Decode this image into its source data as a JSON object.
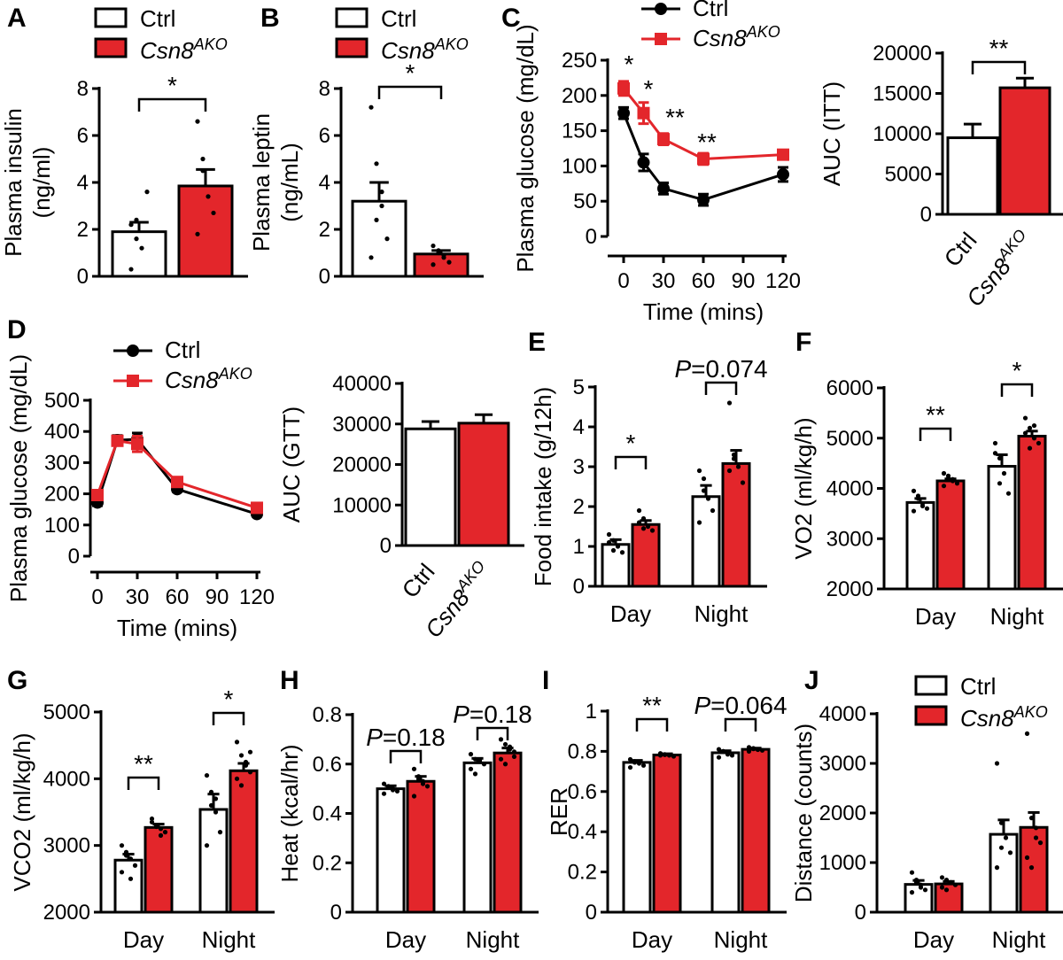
{
  "colors": {
    "ctrl": "#ffffff",
    "ako": "#e3262b",
    "ctrl_line": "#000000",
    "ako_line": "#e3262b"
  },
  "legend": {
    "ctrl": "Ctrl",
    "ako_base": "Csn8",
    "ako_sup": "AKO"
  },
  "chart_data": [
    {
      "panel": "A",
      "type": "bar",
      "ylabel": "Plasma insulin (ng/ml)",
      "ylim": [
        0,
        8
      ],
      "yticks": [
        0,
        2,
        4,
        6,
        8
      ],
      "categories": [
        "Ctrl",
        "Csn8AKO"
      ],
      "values": [
        1.9,
        3.85
      ],
      "errors": [
        0.4,
        0.7
      ],
      "points": [
        [
          2.2,
          1.6,
          1.2,
          3.6,
          0.3,
          2.4
        ],
        [
          6.6,
          4.5,
          3.4,
          2.7,
          1.8,
          5.0
        ]
      ],
      "brackets": [
        {
          "text": "*"
        }
      ]
    },
    {
      "panel": "B",
      "type": "bar",
      "ylabel": "Plasma leptin (ng/mL)",
      "ylim": [
        0,
        8
      ],
      "yticks": [
        0,
        2,
        4,
        6,
        8
      ],
      "categories": [
        "Ctrl",
        "Csn8AKO"
      ],
      "values": [
        3.2,
        0.95
      ],
      "errors": [
        0.8,
        0.15
      ],
      "points": [
        [
          7.2,
          4.8,
          3.0,
          1.6,
          0.8,
          2.4,
          3.6
        ],
        [
          1.3,
          1.1,
          0.8,
          0.6,
          0.5,
          1.0,
          0.9
        ]
      ],
      "brackets": [
        {
          "text": "*"
        }
      ]
    },
    {
      "panel": "C",
      "type": "line",
      "xlabel": "Time (mins)",
      "ylabel": "Plasma glucose (mg/dL)",
      "xlim": [
        0,
        120
      ],
      "ylim": [
        0,
        250
      ],
      "xticks": [
        0,
        30,
        60,
        90,
        120
      ],
      "yticks": [
        0,
        50,
        100,
        150,
        200,
        250
      ],
      "x": [
        0,
        15,
        30,
        60,
        120
      ],
      "series": [
        {
          "name": "Ctrl",
          "values": [
            175,
            105,
            68,
            52,
            88
          ],
          "errors": [
            8,
            12,
            8,
            8,
            10
          ]
        },
        {
          "name": "Csn8AKO",
          "values": [
            210,
            175,
            138,
            110,
            116
          ],
          "errors": [
            10,
            15,
            8,
            8,
            5
          ]
        }
      ],
      "annotations": [
        "*",
        "*",
        "**",
        "**"
      ]
    },
    {
      "panel": "C2",
      "type": "bar",
      "ylabel": "AUC (ITT)",
      "ylim": [
        0,
        20000
      ],
      "yticks": [
        0,
        5000,
        10000,
        15000,
        20000
      ],
      "categories": [
        "Ctrl",
        "Csn8AKO"
      ],
      "values": [
        9500,
        15700
      ],
      "errors": [
        1700,
        1200
      ],
      "brackets": [
        {
          "text": "**"
        }
      ]
    },
    {
      "panel": "D",
      "type": "line",
      "xlabel": "Time (mins)",
      "ylabel": "Plasma glucose (mg/dL)",
      "xlim": [
        0,
        120
      ],
      "ylim": [
        0,
        500
      ],
      "xticks": [
        0,
        30,
        60,
        90,
        120
      ],
      "yticks": [
        0,
        100,
        200,
        300,
        400,
        500
      ],
      "x": [
        0,
        15,
        30,
        60,
        120
      ],
      "series": [
        {
          "name": "Ctrl",
          "values": [
            172,
            372,
            375,
            215,
            135
          ],
          "errors": [
            10,
            15,
            20,
            8,
            6
          ]
        },
        {
          "name": "Csn8AKO",
          "values": [
            196,
            370,
            360,
            238,
            155
          ],
          "errors": [
            10,
            15,
            25,
            8,
            6
          ]
        }
      ]
    },
    {
      "panel": "D2",
      "type": "bar",
      "ylabel": "AUC (GTT)",
      "ylim": [
        0,
        40000
      ],
      "yticks": [
        0,
        10000,
        20000,
        30000,
        40000
      ],
      "categories": [
        "Ctrl",
        "Csn8AKO"
      ],
      "values": [
        28800,
        30200
      ],
      "errors": [
        1800,
        2100
      ]
    },
    {
      "panel": "E",
      "type": "grouped_bar",
      "ylabel": "Food intake (g/12h)",
      "ylim": [
        0,
        5
      ],
      "yticks": [
        0,
        1,
        2,
        3,
        4,
        5
      ],
      "categories": [
        "Day",
        "Night"
      ],
      "series": [
        {
          "name": "Ctrl",
          "values": [
            1.05,
            2.25
          ],
          "errors": [
            0.12,
            0.28
          ]
        },
        {
          "name": "Csn8AKO",
          "values": [
            1.55,
            3.08
          ],
          "errors": [
            0.1,
            0.33
          ]
        }
      ],
      "points": [
        [
          [
            1.3,
            1.15,
            1.0,
            0.85,
            1.1,
            0.9
          ],
          [
            2.9,
            2.7,
            2.2,
            1.9,
            1.6,
            2.4
          ]
        ],
        [
          [
            1.9,
            1.7,
            1.5,
            1.4,
            1.6,
            1.45
          ],
          [
            4.6,
            3.2,
            3.0,
            2.6,
            2.9,
            3.3
          ]
        ]
      ],
      "brackets": [
        {
          "text": "*"
        },
        {
          "text": "P=0.074",
          "italic_prefix": "P",
          "rest": "=0.074"
        }
      ]
    },
    {
      "panel": "F",
      "type": "grouped_bar",
      "ylabel": "VO2 (ml/kg/h)",
      "ylim": [
        2000,
        6000
      ],
      "yticks": [
        2000,
        3000,
        4000,
        5000,
        6000
      ],
      "categories": [
        "Day",
        "Night"
      ],
      "series": [
        {
          "name": "Ctrl",
          "values": [
            3720,
            4440
          ],
          "errors": [
            80,
            230
          ]
        },
        {
          "name": "Csn8AKO",
          "values": [
            4150,
            5040
          ],
          "errors": [
            40,
            100
          ]
        }
      ],
      "points": [
        [
          [
            3950,
            3800,
            3700,
            3600,
            3550,
            3850,
            3650
          ],
          [
            4900,
            4600,
            4300,
            3900,
            4700,
            4100
          ]
        ],
        [
          [
            4300,
            4200,
            4150,
            4100,
            4050,
            4250,
            4180
          ],
          [
            5400,
            5200,
            5000,
            4900,
            5100,
            4800,
            5250
          ]
        ]
      ],
      "brackets": [
        {
          "text": "**"
        },
        {
          "text": "*"
        }
      ]
    },
    {
      "panel": "G",
      "type": "grouped_bar",
      "ylabel": "VCO2 (ml/kg/h)",
      "ylim": [
        2000,
        5000
      ],
      "yticks": [
        2000,
        3000,
        4000,
        5000
      ],
      "categories": [
        "Day",
        "Night"
      ],
      "series": [
        {
          "name": "Ctrl",
          "values": [
            2780,
            3540
          ],
          "errors": [
            90,
            230
          ]
        },
        {
          "name": "Csn8AKO",
          "values": [
            3270,
            4120
          ],
          "errors": [
            50,
            110
          ]
        }
      ],
      "points": [
        [
          [
            3000,
            2900,
            2800,
            2700,
            2600,
            2850,
            2500
          ],
          [
            4050,
            3800,
            3500,
            3200,
            3000,
            3600,
            3700
          ]
        ],
        [
          [
            3400,
            3300,
            3250,
            3200,
            3350,
            3280,
            3150
          ],
          [
            4550,
            4350,
            4200,
            4100,
            4000,
            3900,
            4250,
            4400
          ]
        ]
      ],
      "brackets": [
        {
          "text": "**"
        },
        {
          "text": "*"
        }
      ]
    },
    {
      "panel": "H",
      "type": "grouped_bar",
      "ylabel": "Heat (kcal/hr)",
      "ylim": [
        0,
        0.8
      ],
      "yticks": [
        0,
        0.2,
        0.4,
        0.6,
        0.8
      ],
      "categories": [
        "Day",
        "Night"
      ],
      "series": [
        {
          "name": "Ctrl",
          "values": [
            0.5,
            0.605
          ],
          "errors": [
            0.012,
            0.018
          ]
        },
        {
          "name": "Csn8AKO",
          "values": [
            0.53,
            0.645
          ],
          "errors": [
            0.02,
            0.02
          ]
        }
      ],
      "points": [
        [
          [
            0.52,
            0.51,
            0.5,
            0.49,
            0.48,
            0.505,
            0.495
          ],
          [
            0.64,
            0.62,
            0.61,
            0.6,
            0.58,
            0.56,
            0.615
          ]
        ],
        [
          [
            0.58,
            0.55,
            0.53,
            0.51,
            0.47,
            0.54,
            0.52
          ],
          [
            0.7,
            0.68,
            0.66,
            0.65,
            0.62,
            0.6,
            0.67,
            0.63
          ]
        ]
      ],
      "brackets": [
        {
          "text": "P=0.18",
          "italic_prefix": "P",
          "rest": "=0.18"
        },
        {
          "text": "P=0.18",
          "italic_prefix": "P",
          "rest": "=0.18"
        }
      ]
    },
    {
      "panel": "I",
      "type": "grouped_bar",
      "ylabel": "RER",
      "ylim": [
        0,
        1.0
      ],
      "yticks": [
        0,
        0.2,
        0.4,
        0.6,
        0.8,
        1.0
      ],
      "categories": [
        "Day",
        "Night"
      ],
      "series": [
        {
          "name": "Ctrl",
          "values": [
            0.745,
            0.793
          ],
          "errors": [
            0.01,
            0.01
          ]
        },
        {
          "name": "Csn8AKO",
          "values": [
            0.782,
            0.81
          ],
          "errors": [
            0.006,
            0.006
          ]
        }
      ],
      "points": [
        [
          [
            0.76,
            0.75,
            0.74,
            0.73,
            0.72,
            0.745
          ],
          [
            0.81,
            0.8,
            0.79,
            0.78,
            0.77,
            0.8,
            0.785
          ]
        ],
        [
          [
            0.79,
            0.785,
            0.78,
            0.775,
            0.78,
            0.783
          ],
          [
            0.82,
            0.815,
            0.81,
            0.805,
            0.8,
            0.812,
            0.808
          ]
        ]
      ],
      "brackets": [
        {
          "text": "**"
        },
        {
          "text": "P=0.064",
          "italic_prefix": "P",
          "rest": "=0.064"
        }
      ]
    },
    {
      "panel": "J",
      "type": "grouped_bar",
      "ylabel": "Distance (counts)",
      "ylim": [
        0,
        4000
      ],
      "yticks": [
        0,
        1000,
        2000,
        3000,
        4000
      ],
      "categories": [
        "Day",
        "Night"
      ],
      "series": [
        {
          "name": "Ctrl",
          "values": [
            560,
            1570
          ],
          "errors": [
            80,
            290
          ]
        },
        {
          "name": "Csn8AKO",
          "values": [
            570,
            1710
          ],
          "errors": [
            50,
            300
          ]
        }
      ],
      "points": [
        [
          [
            800,
            650,
            550,
            450,
            400,
            600,
            500
          ],
          [
            3000,
            1800,
            1500,
            1200,
            900,
            1300
          ]
        ],
        [
          [
            700,
            650,
            600,
            550,
            500,
            450
          ],
          [
            3600,
            1900,
            1700,
            1400,
            1100,
            900,
            1500
          ]
        ]
      ]
    }
  ]
}
